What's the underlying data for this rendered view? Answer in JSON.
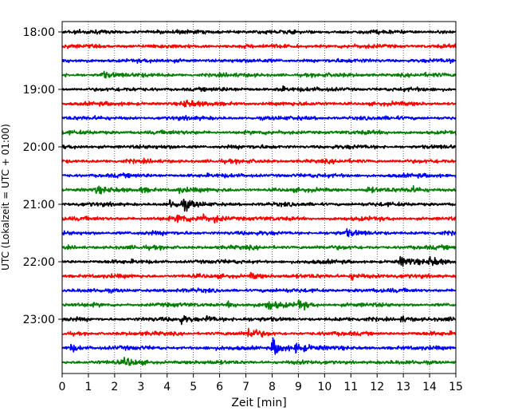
{
  "chart_data": {
    "type": "line",
    "title": "",
    "xlabel": "Zeit  [min]",
    "ylabel": "UTC (Lokalzeit = UTC + 01:00)",
    "xlim": [
      0,
      15
    ],
    "x_ticks": [
      "0",
      "1",
      "2",
      "3",
      "4",
      "5",
      "6",
      "7",
      "8",
      "9",
      "10",
      "11",
      "12",
      "13",
      "14",
      "15"
    ],
    "y_ticks": [
      "18:00",
      "19:00",
      "20:00",
      "21:00",
      "22:00",
      "23:00"
    ],
    "grid": "vertical dotted",
    "colors": [
      "#000000",
      "#ff0000",
      "#0000ff",
      "#008000"
    ],
    "traces_per_hour": 4,
    "series": [
      {
        "start": "18:00",
        "events": []
      },
      {
        "start": "18:15",
        "events": []
      },
      {
        "start": "18:30",
        "events": []
      },
      {
        "start": "18:45",
        "events": [
          [
            1.5,
            2.4
          ]
        ]
      },
      {
        "start": "19:00",
        "events": [
          [
            8.2,
            2.0
          ]
        ]
      },
      {
        "start": "19:15",
        "events": [
          [
            4.6,
            3.0
          ]
        ]
      },
      {
        "start": "19:30",
        "events": []
      },
      {
        "start": "19:45",
        "events": []
      },
      {
        "start": "20:00",
        "events": []
      },
      {
        "start": "20:15",
        "events": []
      },
      {
        "start": "20:30",
        "events": []
      },
      {
        "start": "20:45",
        "events": [
          [
            1.3,
            2.2
          ],
          [
            3.0,
            2.0
          ],
          [
            4.4,
            2.0
          ],
          [
            11.6,
            2.2
          ],
          [
            13.2,
            2.2
          ]
        ]
      },
      {
        "start": "21:00",
        "events": [
          [
            4.1,
            3.0
          ],
          [
            4.6,
            3.5
          ]
        ]
      },
      {
        "start": "21:15",
        "events": [
          [
            4.4,
            3.8
          ],
          [
            5.2,
            3.8
          ],
          [
            5.8,
            2.2
          ]
        ]
      },
      {
        "start": "21:30",
        "events": [
          [
            10.8,
            2.0
          ]
        ]
      },
      {
        "start": "21:45",
        "events": []
      },
      {
        "start": "22:00",
        "events": [
          [
            12.9,
            4.0
          ],
          [
            14.0,
            3.5
          ]
        ]
      },
      {
        "start": "22:15",
        "events": [
          [
            7.2,
            2.5
          ],
          [
            11.0,
            2.8
          ]
        ]
      },
      {
        "start": "22:30",
        "events": []
      },
      {
        "start": "22:45",
        "events": [
          [
            6.3,
            2.0
          ],
          [
            7.8,
            3.5
          ],
          [
            9.0,
            3.5
          ]
        ]
      },
      {
        "start": "23:00",
        "events": [
          [
            4.5,
            3.0
          ],
          [
            5.5,
            2.5
          ],
          [
            12.9,
            2.5
          ]
        ]
      },
      {
        "start": "23:15",
        "events": [
          [
            7.1,
            4.5
          ]
        ]
      },
      {
        "start": "23:30",
        "events": [
          [
            0.3,
            3.0
          ],
          [
            8.0,
            8.0
          ],
          [
            8.9,
            3.5
          ]
        ]
      },
      {
        "start": "23:45",
        "events": [
          [
            2.4,
            3.5
          ]
        ]
      }
    ]
  }
}
